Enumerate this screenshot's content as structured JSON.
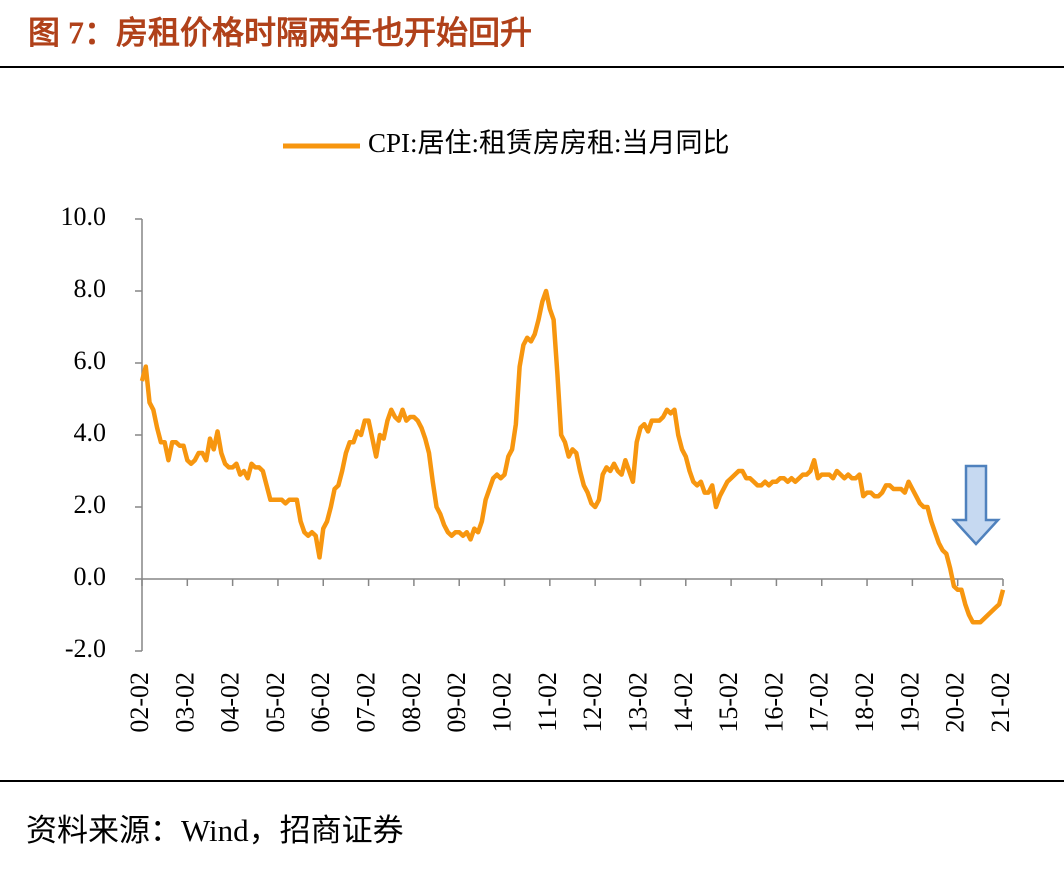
{
  "chart_data": {
    "type": "line",
    "title": "图 7：房租价格时隔两年也开始回升",
    "source": "资料来源：Wind，招商证券",
    "categories": [
      "02-02",
      null,
      null,
      null,
      null,
      null,
      null,
      null,
      null,
      null,
      null,
      null,
      "03-02",
      null,
      null,
      null,
      null,
      null,
      null,
      null,
      null,
      null,
      null,
      null,
      "04-02",
      null,
      null,
      null,
      null,
      null,
      null,
      null,
      null,
      null,
      null,
      null,
      "05-02",
      null,
      null,
      null,
      null,
      null,
      null,
      null,
      null,
      null,
      null,
      null,
      "06-02",
      null,
      null,
      null,
      null,
      null,
      null,
      null,
      null,
      null,
      null,
      null,
      "07-02",
      null,
      null,
      null,
      null,
      null,
      null,
      null,
      null,
      null,
      null,
      null,
      "08-02",
      null,
      null,
      null,
      null,
      null,
      null,
      null,
      null,
      null,
      null,
      null,
      "09-02",
      null,
      null,
      null,
      null,
      null,
      null,
      null,
      null,
      null,
      null,
      null,
      "10-02",
      null,
      null,
      null,
      null,
      null,
      null,
      null,
      null,
      null,
      null,
      null,
      "11-02",
      null,
      null,
      null,
      null,
      null,
      null,
      null,
      null,
      null,
      null,
      null,
      "12-02",
      null,
      null,
      null,
      null,
      null,
      null,
      null,
      null,
      null,
      null,
      null,
      "13-02",
      null,
      null,
      null,
      null,
      null,
      null,
      null,
      null,
      null,
      null,
      null,
      "14-02",
      null,
      null,
      null,
      null,
      null,
      null,
      null,
      null,
      null,
      null,
      null,
      "15-02",
      null,
      null,
      null,
      null,
      null,
      null,
      null,
      null,
      null,
      null,
      null,
      "16-02",
      null,
      null,
      null,
      null,
      null,
      null,
      null,
      null,
      null,
      null,
      null,
      "17-02",
      null,
      null,
      null,
      null,
      null,
      null,
      null,
      null,
      null,
      null,
      null,
      "18-02",
      null,
      null,
      null,
      null,
      null,
      null,
      null,
      null,
      null,
      null,
      null,
      "19-02",
      null,
      null,
      null,
      null,
      null,
      null,
      null,
      null,
      null,
      null,
      null,
      "20-02",
      null,
      null,
      null,
      null,
      null,
      null,
      null,
      null,
      null,
      null,
      null,
      "21-02"
    ],
    "series": [
      {
        "name": "CPI:居住:租赁房房租:当月同比",
        "color": "#f7960f",
        "values": [
          5.5,
          5.9,
          4.9,
          4.7,
          4.2,
          3.8,
          3.8,
          3.3,
          3.8,
          3.8,
          3.7,
          3.7,
          3.3,
          3.2,
          3.3,
          3.5,
          3.5,
          3.3,
          3.9,
          3.6,
          4.1,
          3.5,
          3.2,
          3.1,
          3.1,
          3.2,
          2.9,
          3.0,
          2.8,
          3.2,
          3.1,
          3.1,
          3.0,
          2.6,
          2.2,
          2.2,
          2.2,
          2.2,
          2.1,
          2.2,
          2.2,
          2.2,
          1.6,
          1.3,
          1.2,
          1.3,
          1.2,
          0.6,
          1.4,
          1.6,
          2.0,
          2.5,
          2.6,
          3.0,
          3.5,
          3.8,
          3.8,
          4.1,
          4.0,
          4.4,
          4.4,
          3.9,
          3.4,
          4.0,
          3.9,
          4.4,
          4.7,
          4.5,
          4.4,
          4.7,
          4.4,
          4.5,
          4.5,
          4.4,
          4.2,
          3.9,
          3.5,
          2.7,
          2.0,
          1.8,
          1.5,
          1.3,
          1.2,
          1.3,
          1.3,
          1.2,
          1.3,
          1.1,
          1.4,
          1.3,
          1.6,
          2.2,
          2.5,
          2.8,
          2.9,
          2.8,
          2.9,
          3.4,
          3.6,
          4.3,
          5.9,
          6.5,
          6.7,
          6.6,
          6.8,
          7.2,
          7.7,
          8.0,
          7.5,
          7.2,
          5.7,
          4.0,
          3.8,
          3.4,
          3.6,
          3.5,
          3.0,
          2.6,
          2.4,
          2.1,
          2.0,
          2.2,
          2.9,
          3.1,
          3.0,
          3.2,
          3.0,
          2.9,
          3.3,
          3.0,
          2.7,
          3.8,
          4.2,
          4.3,
          4.1,
          4.4,
          4.4,
          4.4,
          4.5,
          4.7,
          4.6,
          4.7,
          4.0,
          3.6,
          3.4,
          3.0,
          2.7,
          2.6,
          2.7,
          2.4,
          2.4,
          2.6,
          2.0,
          2.3,
          2.5,
          2.7,
          2.8,
          2.9,
          3.0,
          3.0,
          2.8,
          2.8,
          2.7,
          2.6,
          2.6,
          2.7,
          2.6,
          2.7,
          2.7,
          2.8,
          2.8,
          2.7,
          2.8,
          2.7,
          2.8,
          2.9,
          2.9,
          3.0,
          3.3,
          2.8,
          2.9,
          2.9,
          2.9,
          2.8,
          3.0,
          2.9,
          2.8,
          2.9,
          2.8,
          2.8,
          2.9,
          2.3,
          2.4,
          2.4,
          2.3,
          2.3,
          2.4,
          2.6,
          2.6,
          2.5,
          2.5,
          2.5,
          2.4,
          2.7,
          2.5,
          2.3,
          2.1,
          2.0,
          2.0,
          1.6,
          1.3,
          1.0,
          0.8,
          0.7,
          0.3,
          -0.2,
          -0.3,
          -0.3,
          -0.7,
          -1.0,
          -1.2,
          -1.2,
          -1.2,
          -1.1,
          -1.0,
          -0.9,
          -0.8,
          -0.7,
          -0.3
        ]
      }
    ],
    "ylim": [
      -2,
      10
    ],
    "yticks": [
      {
        "value": -2,
        "label": "-2.0"
      },
      {
        "value": 0,
        "label": "0.0"
      },
      {
        "value": 2,
        "label": "2.0"
      },
      {
        "value": 4,
        "label": "4.0"
      },
      {
        "value": 6,
        "label": "6.0"
      },
      {
        "value": 8,
        "label": "8.0"
      },
      {
        "value": 10,
        "label": "10.0"
      }
    ],
    "legend": "top"
  }
}
